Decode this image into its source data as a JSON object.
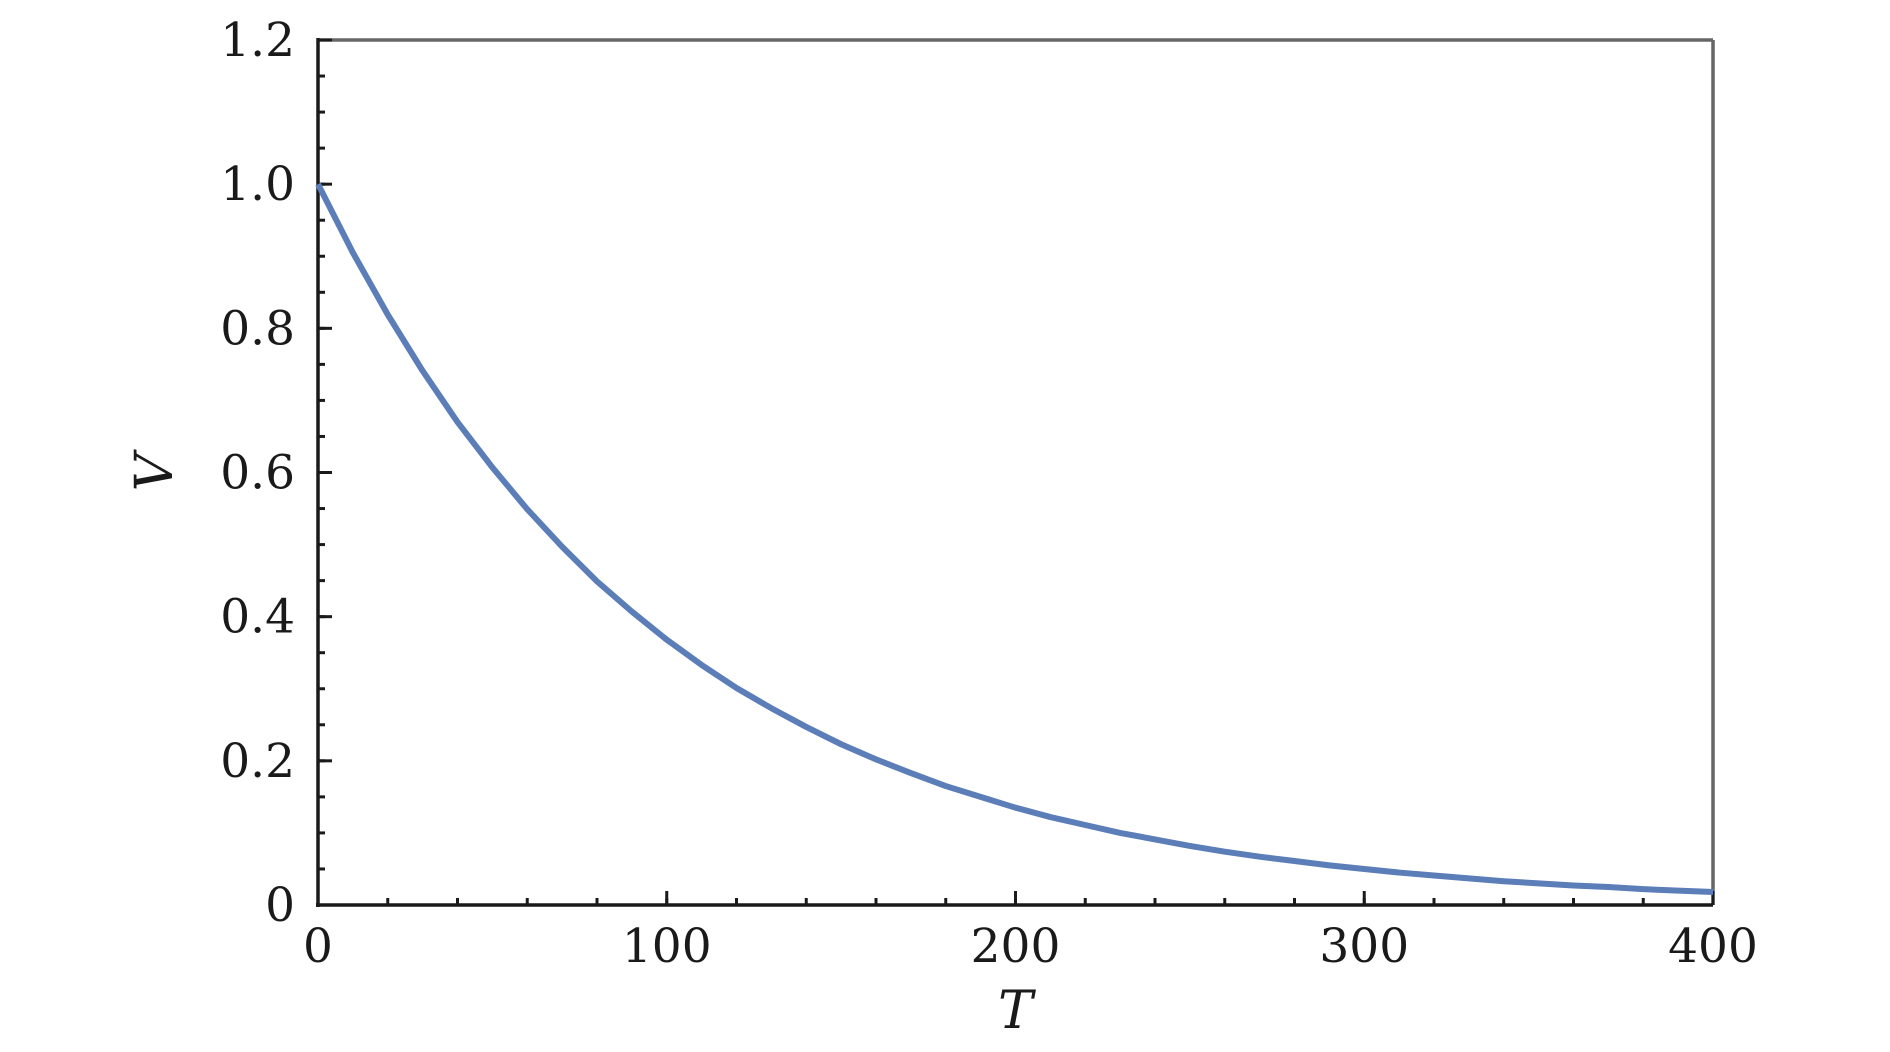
{
  "chart_data": {
    "type": "line",
    "title": "",
    "xlabel": "T",
    "ylabel": "V",
    "xlim": [
      0,
      400
    ],
    "ylim": [
      0,
      1.2
    ],
    "x_ticks": [
      0,
      100,
      200,
      300,
      400
    ],
    "x_tick_labels": [
      "0",
      "100",
      "200",
      "300",
      "400"
    ],
    "x_minor_step": 20,
    "y_ticks": [
      0,
      0.2,
      0.4,
      0.6,
      0.8,
      1.0,
      1.2
    ],
    "y_tick_labels": [
      "0",
      "0.2",
      "0.4",
      "0.6",
      "0.8",
      "1.0",
      "1.2"
    ],
    "y_minor_step": 0.05,
    "grid": false,
    "legend": "none",
    "series": [
      {
        "color": "#5b7db8",
        "x": [
          0,
          10,
          20,
          30,
          40,
          50,
          60,
          70,
          80,
          90,
          100,
          110,
          120,
          130,
          140,
          150,
          160,
          170,
          180,
          190,
          200,
          210,
          220,
          230,
          240,
          250,
          260,
          270,
          280,
          290,
          300,
          310,
          320,
          330,
          340,
          350,
          360,
          370,
          380,
          390,
          400
        ],
        "y": [
          1.0,
          0.905,
          0.819,
          0.741,
          0.67,
          0.607,
          0.549,
          0.497,
          0.449,
          0.407,
          0.368,
          0.333,
          0.301,
          0.273,
          0.247,
          0.223,
          0.202,
          0.183,
          0.165,
          0.15,
          0.135,
          0.122,
          0.111,
          0.1,
          0.091,
          0.082,
          0.074,
          0.067,
          0.061,
          0.055,
          0.05,
          0.045,
          0.041,
          0.037,
          0.033,
          0.03,
          0.027,
          0.025,
          0.022,
          0.02,
          0.018
        ]
      }
    ]
  },
  "colors": {
    "frame_left_bottom": "#1a1a1a",
    "frame_top_right": "#666666",
    "curve": "#5b7db8"
  }
}
